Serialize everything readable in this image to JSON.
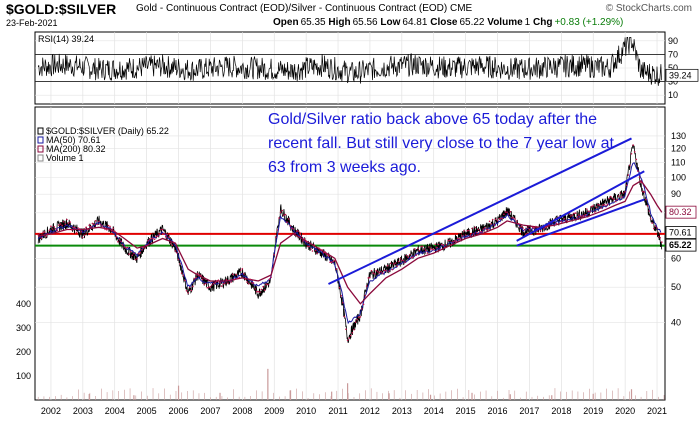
{
  "header": {
    "symbol": "$GOLD:$SILVER",
    "description": "Gold - Continuous Contract (EOD)/Silver - Continuous Contract (EOD) CME",
    "date": "23-Feb-2021",
    "open_label": "Open",
    "open": "65.35",
    "high_label": "High",
    "high": "65.56",
    "low_label": "Low",
    "low": "64.81",
    "close_label": "Close",
    "close": "65.22",
    "volume_label": "Volume",
    "volume": "1",
    "chg_label": "Chg",
    "chg": "+0.83 (+1.29%)",
    "brand": "© StockCharts.com"
  },
  "annotation": "Gold/Silver ratio back above 65 today after the recent fall. But still very close to the 7 year low at 63 from 3 weeks ago.",
  "chart_data": [
    {
      "type": "line",
      "panel": "RSI(14)",
      "legend": "RSI(14) 39.24",
      "last_value": "39.24",
      "y_ticks": [
        10,
        30,
        50,
        70,
        90
      ],
      "ylim": [
        0,
        100
      ],
      "reference_lines": [
        30,
        70
      ],
      "x": [
        2001.6,
        2002.5,
        2003.5,
        2004.5,
        2005.5,
        2006.5,
        2007.5,
        2008.5,
        2009.5,
        2010.5,
        2011.5,
        2012.5,
        2013.5,
        2014.5,
        2015.5,
        2016.5,
        2017.5,
        2018.5,
        2019.5,
        2020.2,
        2020.5,
        2021.15
      ],
      "values": [
        52,
        55,
        48,
        50,
        53,
        47,
        52,
        50,
        46,
        54,
        42,
        52,
        55,
        50,
        53,
        48,
        51,
        54,
        50,
        92,
        45,
        39.24
      ],
      "colors": {
        "line": "#000000",
        "band": "#000000"
      }
    },
    {
      "type": "line",
      "panel": "Gold/Silver Ratio",
      "legend": [
        {
          "label": "$GOLD:$SILVER (Daily) 65.22",
          "color": "#000000"
        },
        {
          "label": "MA(50) 70.61",
          "color": "#1a1aa0"
        },
        {
          "label": "MA(200) 80.32",
          "color": "#8b0a3c"
        },
        {
          "label": "Volume 1",
          "color": "#888888"
        }
      ],
      "y_scale": "log",
      "y_ticks": [
        40,
        50,
        60,
        70,
        80,
        90,
        100,
        110,
        120,
        130
      ],
      "ylim": [
        30,
        135
      ],
      "x_ticks": [
        "2002",
        "2003",
        "2004",
        "2005",
        "2006",
        "2007",
        "2008",
        "2009",
        "2010",
        "2011",
        "2012",
        "2013",
        "2014",
        "2015",
        "2016",
        "2017",
        "2018",
        "2019",
        "2020",
        "2021"
      ],
      "x": [
        2001.6,
        2002.0,
        2002.5,
        2003.0,
        2003.5,
        2003.9,
        2004.3,
        2004.7,
        2005.0,
        2005.5,
        2005.9,
        2006.3,
        2006.6,
        2007.0,
        2007.5,
        2008.0,
        2008.5,
        2008.9,
        2009.2,
        2009.6,
        2010.0,
        2010.5,
        2010.9,
        2011.3,
        2011.7,
        2012.0,
        2012.5,
        2013.0,
        2013.5,
        2014.0,
        2014.5,
        2015.0,
        2015.5,
        2016.0,
        2016.3,
        2016.8,
        2017.3,
        2017.8,
        2018.3,
        2018.8,
        2019.3,
        2019.7,
        2020.0,
        2020.25,
        2020.5,
        2020.8,
        2021.0,
        2021.15
      ],
      "series": [
        {
          "name": "$GOLD:$SILVER",
          "values": [
            68,
            72,
            75,
            70,
            76,
            72,
            64,
            60,
            66,
            72,
            64,
            48,
            54,
            50,
            52,
            55,
            48,
            52,
            82,
            72,
            66,
            62,
            58,
            36,
            42,
            54,
            56,
            59,
            63,
            64,
            66,
            70,
            72,
            76,
            81,
            71,
            72,
            76,
            78,
            80,
            85,
            88,
            90,
            122,
            95,
            77,
            71,
            65.22
          ]
        },
        {
          "name": "MA(50)",
          "values": [
            68,
            71,
            74,
            71,
            75,
            72,
            65,
            61,
            66,
            71,
            65,
            50,
            53,
            51,
            52,
            54,
            50,
            53,
            78,
            72,
            66,
            62,
            58,
            40,
            42,
            52,
            55,
            58,
            62,
            63,
            66,
            69,
            71,
            75,
            79,
            72,
            72,
            75,
            77,
            79,
            83,
            86,
            89,
            110,
            100,
            80,
            73,
            70.61
          ]
        },
        {
          "name": "MA(200)",
          "values": [
            69,
            70,
            72,
            72,
            73,
            72,
            68,
            64,
            65,
            68,
            66,
            56,
            54,
            52,
            52,
            53,
            52,
            54,
            66,
            70,
            67,
            63,
            60,
            50,
            45,
            48,
            53,
            56,
            60,
            62,
            65,
            68,
            70,
            73,
            76,
            74,
            73,
            74,
            76,
            78,
            81,
            84,
            86,
            95,
            98,
            90,
            84,
            80.32
          ]
        }
      ],
      "value_tags": [
        {
          "label": "80.32",
          "value": 80.32,
          "color": "#8b0a3c"
        },
        {
          "label": "70.61",
          "value": 70.61,
          "color": "#000000"
        },
        {
          "label": "65.22",
          "value": 65.22,
          "color": "#000000"
        }
      ],
      "horizontal_lines": [
        {
          "value": 70,
          "color": "#e00000"
        },
        {
          "value": 65,
          "color": "#0a8a0a"
        }
      ],
      "trendlines": [
        {
          "x1": 2010.7,
          "y1": 51,
          "x2": 2020.2,
          "y2": 128,
          "color": "#1b1bd8"
        },
        {
          "x1": 2016.6,
          "y1": 67,
          "x2": 2020.6,
          "y2": 104,
          "color": "#1b1bd8"
        },
        {
          "x1": 2016.6,
          "y1": 65,
          "x2": 2020.6,
          "y2": 87,
          "color": "#1b1bd8"
        }
      ],
      "volume": {
        "y_ticks": [
          100,
          200,
          300,
          400
        ],
        "ylim": [
          0,
          480
        ],
        "spikes": [
          {
            "x": 2003.2,
            "value": 25
          },
          {
            "x": 2004.6,
            "value": 20
          },
          {
            "x": 2006.0,
            "value": 60
          },
          {
            "x": 2007.3,
            "value": 30
          },
          {
            "x": 2008.8,
            "value": 130
          },
          {
            "x": 2009.5,
            "value": 40
          },
          {
            "x": 2010.8,
            "value": 35
          },
          {
            "x": 2011.3,
            "value": 70
          },
          {
            "x": 2012.6,
            "value": 28
          },
          {
            "x": 2013.9,
            "value": 22
          },
          {
            "x": 2015.2,
            "value": 30
          },
          {
            "x": 2016.4,
            "value": 24
          },
          {
            "x": 2017.7,
            "value": 20
          },
          {
            "x": 2019.0,
            "value": 26
          },
          {
            "x": 2020.2,
            "value": 45
          }
        ],
        "color": "#c99a9a"
      },
      "colors": {
        "price": "#000000",
        "ma50": "#1a1aa0",
        "ma200": "#8b0a3c"
      }
    }
  ]
}
